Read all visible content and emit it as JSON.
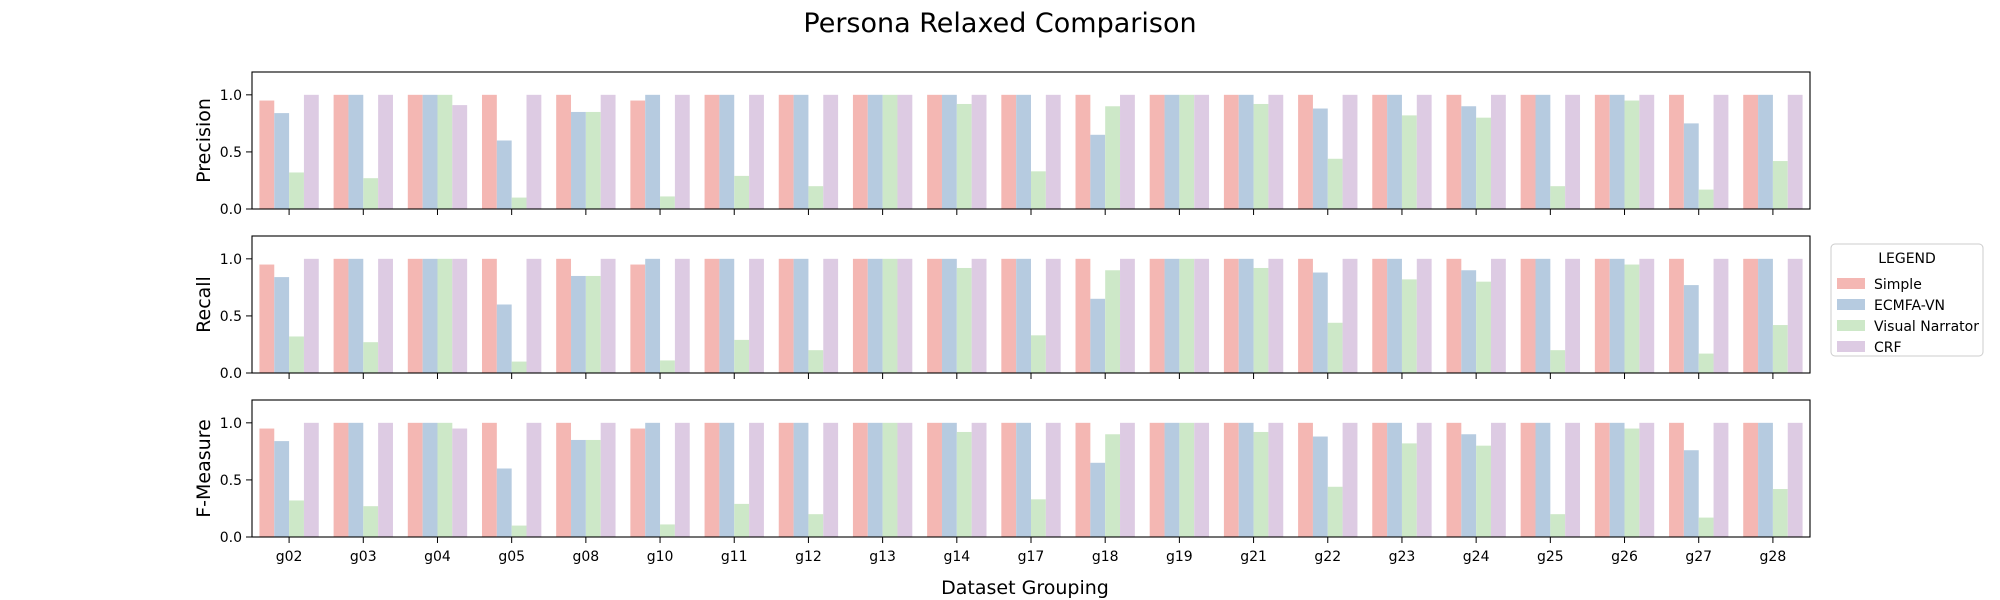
{
  "chart_data": {
    "type": "bar",
    "title": "Persona Relaxed Comparison",
    "xlabel": "Dataset Grouping",
    "categories": [
      "g02",
      "g03",
      "g04",
      "g05",
      "g08",
      "g10",
      "g11",
      "g12",
      "g13",
      "g14",
      "g17",
      "g18",
      "g19",
      "g21",
      "g22",
      "g23",
      "g24",
      "g25",
      "g26",
      "g27",
      "g28"
    ],
    "ylim": [
      0,
      1.2
    ],
    "yticks": [
      "0.0",
      "0.5",
      "1.0"
    ],
    "grid": false,
    "legend": {
      "title": "LEGEND",
      "placement": "center-right, outside plots",
      "entries": [
        "Simple",
        "ECMFA-VN",
        "Visual Narrator",
        "CRF"
      ]
    },
    "colors": {
      "Simple": "#f4b7b3",
      "ECMFA-VN": "#b6cbe0",
      "Visual Narrator": "#cde8c8",
      "CRF": "#ddcbe3"
    },
    "panels": [
      {
        "ylabel": "Precision",
        "series": [
          {
            "name": "Simple",
            "values": [
              0.95,
              1,
              1,
              1,
              1,
              0.95,
              1,
              1,
              1,
              1,
              1,
              1,
              1,
              1,
              1,
              1,
              1,
              1,
              1,
              1,
              1
            ]
          },
          {
            "name": "ECMFA-VN",
            "values": [
              0.84,
              1,
              1,
              0.6,
              0.85,
              1,
              1,
              1,
              1,
              1,
              1,
              0.65,
              1,
              1,
              0.88,
              1,
              0.9,
              1,
              1,
              0.75,
              1
            ]
          },
          {
            "name": "Visual Narrator",
            "values": [
              0.32,
              0.27,
              1,
              0.1,
              0.85,
              0.11,
              0.29,
              0.2,
              1,
              0.92,
              0.33,
              0.9,
              1,
              0.92,
              0.44,
              0.82,
              0.8,
              0.2,
              0.95,
              0.17,
              0.42
            ]
          },
          {
            "name": "CRF",
            "values": [
              1,
              1,
              0.91,
              1,
              1,
              1,
              1,
              1,
              1,
              1,
              1,
              1,
              1,
              1,
              1,
              1,
              1,
              1,
              1,
              1,
              1
            ]
          }
        ]
      },
      {
        "ylabel": "Recall",
        "series": [
          {
            "name": "Simple",
            "values": [
              0.95,
              1,
              1,
              1,
              1,
              0.95,
              1,
              1,
              1,
              1,
              1,
              1,
              1,
              1,
              1,
              1,
              1,
              1,
              1,
              1,
              1
            ]
          },
          {
            "name": "ECMFA-VN",
            "values": [
              0.84,
              1,
              1,
              0.6,
              0.85,
              1,
              1,
              1,
              1,
              1,
              1,
              0.65,
              1,
              1,
              0.88,
              1,
              0.9,
              1,
              1,
              0.77,
              1
            ]
          },
          {
            "name": "Visual Narrator",
            "values": [
              0.32,
              0.27,
              1,
              0.1,
              0.85,
              0.11,
              0.29,
              0.2,
              1,
              0.92,
              0.33,
              0.9,
              1,
              0.92,
              0.44,
              0.82,
              0.8,
              0.2,
              0.95,
              0.17,
              0.42
            ]
          },
          {
            "name": "CRF",
            "values": [
              1,
              1,
              1,
              1,
              1,
              1,
              1,
              1,
              1,
              1,
              1,
              1,
              1,
              1,
              1,
              1,
              1,
              1,
              1,
              1,
              1
            ]
          }
        ]
      },
      {
        "ylabel": "F-Measure",
        "series": [
          {
            "name": "Simple",
            "values": [
              0.95,
              1,
              1,
              1,
              1,
              0.95,
              1,
              1,
              1,
              1,
              1,
              1,
              1,
              1,
              1,
              1,
              1,
              1,
              1,
              1,
              1
            ]
          },
          {
            "name": "ECMFA-VN",
            "values": [
              0.84,
              1,
              1,
              0.6,
              0.85,
              1,
              1,
              1,
              1,
              1,
              1,
              0.65,
              1,
              1,
              0.88,
              1,
              0.9,
              1,
              1,
              0.76,
              1
            ]
          },
          {
            "name": "Visual Narrator",
            "values": [
              0.32,
              0.27,
              1,
              0.1,
              0.85,
              0.11,
              0.29,
              0.2,
              1,
              0.92,
              0.33,
              0.9,
              1,
              0.92,
              0.44,
              0.82,
              0.8,
              0.2,
              0.95,
              0.17,
              0.42
            ]
          },
          {
            "name": "CRF",
            "values": [
              1,
              1,
              0.95,
              1,
              1,
              1,
              1,
              1,
              1,
              1,
              1,
              1,
              1,
              1,
              1,
              1,
              1,
              1,
              1,
              1,
              1
            ]
          }
        ]
      }
    ]
  }
}
